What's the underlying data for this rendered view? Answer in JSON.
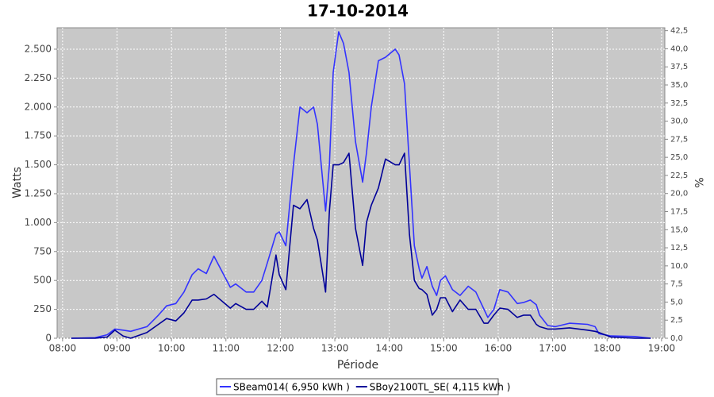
{
  "chart_data": {
    "type": "line",
    "title": "17-10-2014",
    "x_label": "Période",
    "y_label": "Watts",
    "y2_label": "%",
    "x": [
      8.16,
      8.6,
      8.82,
      8.96,
      9.11,
      9.25,
      9.55,
      9.76,
      9.91,
      10.08,
      10.23,
      10.38,
      10.49,
      10.64,
      10.78,
      11.08,
      11.18,
      11.37,
      11.51,
      11.66,
      11.76,
      11.92,
      11.98,
      12.1,
      12.24,
      12.36,
      12.49,
      12.61,
      12.68,
      12.83,
      12.9,
      12.97,
      13.07,
      13.16,
      13.26,
      13.38,
      13.51,
      13.58,
      13.67,
      13.8,
      13.93,
      14.11,
      14.18,
      14.28,
      14.37,
      14.46,
      14.55,
      14.6,
      14.69,
      14.79,
      14.87,
      14.94,
      15.03,
      15.16,
      15.3,
      15.45,
      15.59,
      15.74,
      15.81,
      15.92,
      16.03,
      16.18,
      16.35,
      16.47,
      16.59,
      16.7,
      16.76,
      16.91,
      17.05,
      17.31,
      17.64,
      17.78,
      17.85,
      18.07,
      18.51,
      18.8
    ],
    "series": [
      {
        "name": "SBeam014( 6,950 kWh )",
        "color": "#3333ff",
        "values": [
          0,
          5,
          30,
          80,
          70,
          60,
          100,
          200,
          280,
          300,
          400,
          550,
          600,
          560,
          710,
          440,
          470,
          400,
          400,
          500,
          650,
          900,
          920,
          800,
          1500,
          2000,
          1950,
          2000,
          1850,
          1100,
          1500,
          2300,
          2650,
          2550,
          2300,
          1700,
          1350,
          1600,
          2000,
          2400,
          2430,
          2500,
          2450,
          2200,
          1500,
          800,
          600,
          520,
          620,
          450,
          370,
          500,
          540,
          420,
          370,
          450,
          400,
          250,
          180,
          250,
          420,
          400,
          300,
          310,
          330,
          290,
          200,
          110,
          100,
          130,
          120,
          100,
          40,
          20,
          15,
          0
        ]
      },
      {
        "name": "SBoy2100TL_SE( 4,115 kWh )",
        "color": "#000099",
        "values": [
          0,
          0,
          10,
          70,
          20,
          0,
          50,
          120,
          170,
          150,
          220,
          330,
          330,
          340,
          380,
          260,
          300,
          250,
          250,
          320,
          270,
          720,
          550,
          420,
          1150,
          1120,
          1200,
          950,
          850,
          400,
          1100,
          1500,
          1500,
          1520,
          1600,
          950,
          630,
          1000,
          1150,
          1300,
          1550,
          1500,
          1500,
          1600,
          900,
          500,
          430,
          420,
          380,
          200,
          250,
          350,
          350,
          230,
          330,
          250,
          250,
          130,
          130,
          200,
          260,
          250,
          180,
          200,
          200,
          120,
          100,
          80,
          80,
          90,
          70,
          60,
          50,
          10,
          0,
          0
        ]
      }
    ],
    "xlim": [
      7.9,
      19.06
    ],
    "xticks": [
      {
        "value": 8,
        "label": "08:00"
      },
      {
        "value": 9,
        "label": "09:00"
      },
      {
        "value": 10,
        "label": "10:00"
      },
      {
        "value": 11,
        "label": "11:00"
      },
      {
        "value": 12,
        "label": "12:00"
      },
      {
        "value": 13,
        "label": "13:00"
      },
      {
        "value": 14,
        "label": "14:00"
      },
      {
        "value": 15,
        "label": "15:00"
      },
      {
        "value": 16,
        "label": "16:00"
      },
      {
        "value": 17,
        "label": "17:00"
      },
      {
        "value": 18,
        "label": "18:00"
      },
      {
        "value": 19,
        "label": "19:00"
      }
    ],
    "ylim": [
      0,
      2685
    ],
    "yticks": [
      0,
      250,
      500,
      750,
      {
        "value": 1000,
        "label": "1.000"
      },
      {
        "value": 1250,
        "label": "1.250"
      },
      {
        "value": 1500,
        "label": "1.500"
      },
      {
        "value": 1750,
        "label": "1.750"
      },
      {
        "value": 2000,
        "label": "2.000"
      },
      {
        "value": 2250,
        "label": "2.250"
      },
      {
        "value": 2500,
        "label": "2.500"
      }
    ],
    "y2lim": [
      0,
      42.9
    ],
    "y2ticks": [
      {
        "value": 0,
        "label": "0,0"
      },
      {
        "value": 2.5,
        "label": "2,5"
      },
      {
        "value": 5,
        "label": "5,0"
      },
      {
        "value": 7.5,
        "label": "7,5"
      },
      {
        "value": 10,
        "label": "10,0"
      },
      {
        "value": 12.5,
        "label": "12,5"
      },
      {
        "value": 15,
        "label": "15,0"
      },
      {
        "value": 17.5,
        "label": "17,5"
      },
      {
        "value": 20,
        "label": "20,0"
      },
      {
        "value": 22.5,
        "label": "22,5"
      },
      {
        "value": 25,
        "label": "25,0"
      },
      {
        "value": 27.5,
        "label": "27,5"
      },
      {
        "value": 30,
        "label": "30,0"
      },
      {
        "value": 32.5,
        "label": "32,5"
      },
      {
        "value": 35,
        "label": "35,0"
      },
      {
        "value": 37.5,
        "label": "37,5"
      },
      {
        "value": 40,
        "label": "40,0"
      },
      {
        "value": 42.5,
        "label": "42,5"
      }
    ],
    "grid": true,
    "legend": "bottom"
  }
}
